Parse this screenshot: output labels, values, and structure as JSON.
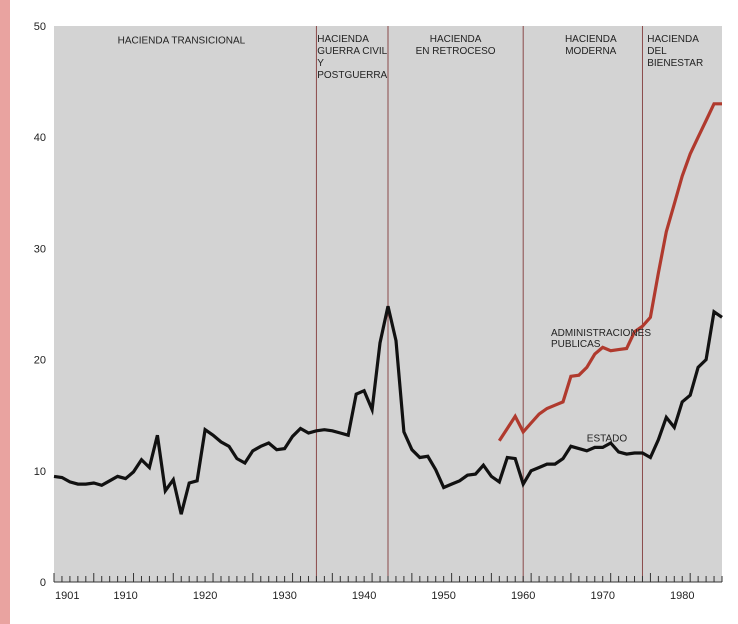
{
  "chart_data": {
    "type": "line",
    "xlim": [
      1901,
      1985
    ],
    "ylim": [
      0,
      50
    ],
    "y_ticks": [
      0,
      10,
      20,
      30,
      40,
      50
    ],
    "x_tick_labels": [
      "1901",
      "1910",
      "1920",
      "1930",
      "1940",
      "1950",
      "1960",
      "1970",
      "1980"
    ],
    "x_tick_values": [
      1901,
      1910,
      1920,
      1930,
      1940,
      1950,
      1960,
      1970,
      1980
    ],
    "grid": false,
    "colors": {
      "plot_background": "#d3d3d3",
      "estado": "#111111",
      "administraciones": "#b03a2e",
      "period_divider": "#8a4a4a"
    },
    "period_dividers": [
      1934,
      1943,
      1960,
      1975
    ],
    "periods": [
      {
        "label_lines": [
          "HACIENDA TRANSICIONAL"
        ],
        "x": 1909,
        "y": 48.8
      },
      {
        "label_lines": [
          "HACIENDA",
          "GUERRA CIVIL",
          "Y",
          "POSTGUERRA"
        ],
        "x": 1934.1,
        "y": 48.9
      },
      {
        "label_lines": [
          "HACIENDA",
          "EN RETROCESO"
        ],
        "x": 1951.5,
        "y": 48.9,
        "anchor": "middle"
      },
      {
        "label_lines": [
          "HACIENDA",
          "MODERNA"
        ],
        "x": 1968.5,
        "y": 48.9,
        "anchor": "middle"
      },
      {
        "label_lines": [
          "HACIENDA",
          "DEL",
          "BIENESTAR"
        ],
        "x": 1975.6,
        "y": 48.9
      }
    ],
    "series": [
      {
        "name": "ESTADO",
        "label_lines": [
          "ESTADO"
        ],
        "label_pos": {
          "x": 1968,
          "y": 13.0
        },
        "x": [
          1901,
          1902,
          1903,
          1904,
          1905,
          1906,
          1907,
          1908,
          1909,
          1910,
          1911,
          1912,
          1913,
          1914,
          1915,
          1916,
          1917,
          1918,
          1919,
          1920,
          1921,
          1922,
          1923,
          1924,
          1925,
          1926,
          1927,
          1928,
          1929,
          1930,
          1931,
          1932,
          1933,
          1934,
          1935,
          1936,
          1937,
          1938,
          1939,
          1940,
          1941,
          1942,
          1943,
          1944,
          1945,
          1946,
          1947,
          1948,
          1949,
          1950,
          1951,
          1952,
          1953,
          1954,
          1955,
          1956,
          1957,
          1958,
          1959,
          1960,
          1961,
          1962,
          1963,
          1964,
          1965,
          1966,
          1967,
          1968,
          1969,
          1970,
          1971,
          1972,
          1973,
          1974,
          1975,
          1976,
          1977,
          1978,
          1979,
          1980,
          1981,
          1982,
          1983,
          1984,
          1985
        ],
        "values": [
          9.5,
          9.4,
          9.0,
          8.8,
          8.8,
          8.9,
          8.7,
          9.1,
          9.5,
          9.3,
          9.9,
          11.0,
          10.3,
          13.2,
          8.2,
          9.2,
          6.1,
          8.9,
          9.1,
          13.7,
          13.2,
          12.6,
          12.2,
          11.1,
          10.7,
          11.8,
          12.2,
          12.5,
          11.9,
          12.0,
          13.1,
          13.8,
          13.4,
          13.6,
          13.7,
          13.6,
          13.4,
          13.2,
          16.9,
          17.2,
          15.5,
          21.5,
          24.8,
          21.7,
          13.5,
          11.9,
          11.2,
          11.3,
          10.1,
          8.5,
          8.8,
          9.1,
          9.6,
          9.7,
          10.5,
          9.5,
          9.0,
          11.2,
          11.1,
          8.8,
          10.0,
          10.3,
          10.6,
          10.6,
          11.1,
          12.2,
          12.0,
          11.8,
          12.1,
          12.1,
          12.5,
          11.7,
          11.5,
          11.6,
          11.6,
          11.2,
          12.8,
          14.8,
          13.9,
          16.2,
          16.8,
          19.3,
          20.0,
          24.3,
          23.8
        ]
      },
      {
        "name": "ADMINISTRACIONES PUBLICAS",
        "label_lines": [
          "ADMINISTRACIONES",
          "PUBLICAS"
        ],
        "label_pos": {
          "x": 1963.5,
          "y": 22.5
        },
        "x": [
          1957,
          1958,
          1959,
          1960,
          1961,
          1962,
          1963,
          1964,
          1965,
          1966,
          1967,
          1968,
          1969,
          1970,
          1971,
          1972,
          1973,
          1974,
          1975,
          1976,
          1977,
          1978,
          1979,
          1980,
          1981,
          1982,
          1983,
          1984,
          1985
        ],
        "values": [
          12.7,
          13.8,
          14.9,
          13.5,
          14.3,
          15.1,
          15.6,
          15.9,
          16.2,
          18.5,
          18.6,
          19.3,
          20.5,
          21.1,
          20.8,
          20.9,
          21.0,
          22.5,
          23.0,
          23.8,
          27.8,
          31.5,
          34.0,
          36.5,
          38.5,
          40.0,
          41.5,
          43.0,
          43.0
        ]
      }
    ]
  }
}
